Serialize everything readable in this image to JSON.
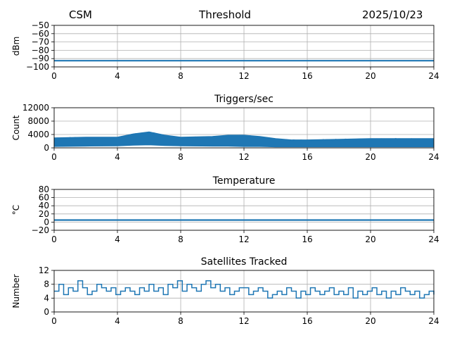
{
  "header": {
    "left": "CSM",
    "center": "Threshold",
    "right": "2025/10/23"
  },
  "chart_data": [
    {
      "type": "line",
      "title": "",
      "xlabel": "",
      "ylabel": "dBm",
      "xlim": [
        0,
        24
      ],
      "ylim": [
        -100,
        -50
      ],
      "xticks": [
        0,
        4,
        8,
        12,
        16,
        20,
        24
      ],
      "yticks": [
        -100,
        -90,
        -80,
        -70,
        -60,
        -50
      ],
      "ytick_labels": [
        "−100",
        "−90",
        "−80",
        "−70",
        "−60",
        "−50"
      ],
      "grid": true,
      "color": "#1f77b4",
      "series": [
        {
          "x": [
            0,
            4,
            8,
            12,
            16,
            20,
            24
          ],
          "y": [
            -92.5,
            -92.5,
            -92.5,
            -92.5,
            -92.5,
            -92.5,
            -92.5
          ]
        }
      ]
    },
    {
      "type": "area",
      "title": "Triggers/sec",
      "xlabel": "",
      "ylabel": "Count",
      "xlim": [
        0,
        24
      ],
      "ylim": [
        0,
        12000
      ],
      "xticks": [
        0,
        4,
        8,
        12,
        16,
        20,
        24
      ],
      "yticks": [
        0,
        4000,
        8000,
        12000
      ],
      "ytick_labels": [
        "0",
        "4000",
        "8000",
        "12000"
      ],
      "grid": true,
      "color": "#1f77b4",
      "series": [
        {
          "x": [
            0,
            2,
            4,
            5,
            6,
            7,
            8,
            10,
            11,
            12,
            13,
            14,
            15,
            16,
            18,
            20,
            22,
            24
          ],
          "y_max": [
            3000,
            3200,
            3200,
            4200,
            4800,
            3800,
            3200,
            3400,
            3800,
            3800,
            3400,
            2800,
            2400,
            2400,
            2600,
            2800,
            2800,
            2800
          ],
          "y_min": [
            400,
            500,
            600,
            800,
            900,
            700,
            600,
            500,
            500,
            400,
            400,
            300,
            300,
            300,
            300,
            300,
            300,
            300
          ]
        }
      ]
    },
    {
      "type": "line",
      "title": "Temperature",
      "xlabel": "",
      "ylabel": "°C",
      "xlim": [
        0,
        24
      ],
      "ylim": [
        -20,
        80
      ],
      "xticks": [
        0,
        4,
        8,
        12,
        16,
        20,
        24
      ],
      "yticks": [
        -20,
        0,
        20,
        40,
        60,
        80
      ],
      "ytick_labels": [
        "−20",
        "0",
        "20",
        "40",
        "60",
        "80"
      ],
      "grid": true,
      "color": "#1f77b4",
      "series": [
        {
          "x": [
            0,
            4,
            8,
            12,
            16,
            20,
            24
          ],
          "y": [
            5,
            5,
            5,
            5,
            5,
            5,
            5
          ]
        }
      ]
    },
    {
      "type": "line",
      "title": "Satellites Tracked",
      "xlabel": "",
      "ylabel": "Number",
      "xlim": [
        0,
        24
      ],
      "ylim": [
        0,
        12
      ],
      "xticks": [
        0,
        4,
        8,
        12,
        16,
        20,
        24
      ],
      "yticks": [
        0,
        4,
        8,
        12
      ],
      "ytick_labels": [
        "0",
        "4",
        "8",
        "12"
      ],
      "grid": true,
      "color": "#1f77b4",
      "series": [
        {
          "x": [
            0,
            0.3,
            0.6,
            0.9,
            1.2,
            1.5,
            1.8,
            2.1,
            2.4,
            2.7,
            3.0,
            3.3,
            3.6,
            3.9,
            4.2,
            4.5,
            4.8,
            5.1,
            5.4,
            5.7,
            6.0,
            6.3,
            6.6,
            6.9,
            7.2,
            7.5,
            7.8,
            8.1,
            8.4,
            8.7,
            9.0,
            9.3,
            9.6,
            9.9,
            10.2,
            10.5,
            10.8,
            11.1,
            11.4,
            11.7,
            12.0,
            12.3,
            12.6,
            12.9,
            13.2,
            13.5,
            13.8,
            14.1,
            14.4,
            14.7,
            15.0,
            15.3,
            15.6,
            15.9,
            16.2,
            16.5,
            16.8,
            17.1,
            17.4,
            17.7,
            18.0,
            18.3,
            18.6,
            18.9,
            19.2,
            19.5,
            19.8,
            20.1,
            20.4,
            20.7,
            21.0,
            21.3,
            21.6,
            21.9,
            22.2,
            22.5,
            22.8,
            23.1,
            23.4,
            23.7,
            24.0
          ],
          "y": [
            6,
            8,
            5,
            7,
            6,
            9,
            7,
            5,
            6,
            8,
            7,
            6,
            7,
            5,
            6,
            7,
            6,
            5,
            7,
            6,
            8,
            6,
            7,
            5,
            8,
            7,
            9,
            6,
            8,
            7,
            6,
            8,
            9,
            7,
            8,
            6,
            7,
            5,
            6,
            7,
            7,
            5,
            6,
            7,
            6,
            4,
            5,
            6,
            5,
            7,
            6,
            4,
            6,
            5,
            7,
            6,
            5,
            6,
            7,
            5,
            6,
            5,
            7,
            4,
            6,
            5,
            6,
            7,
            5,
            6,
            4,
            6,
            5,
            7,
            6,
            5,
            6,
            4,
            5,
            6,
            5
          ]
        }
      ]
    }
  ]
}
